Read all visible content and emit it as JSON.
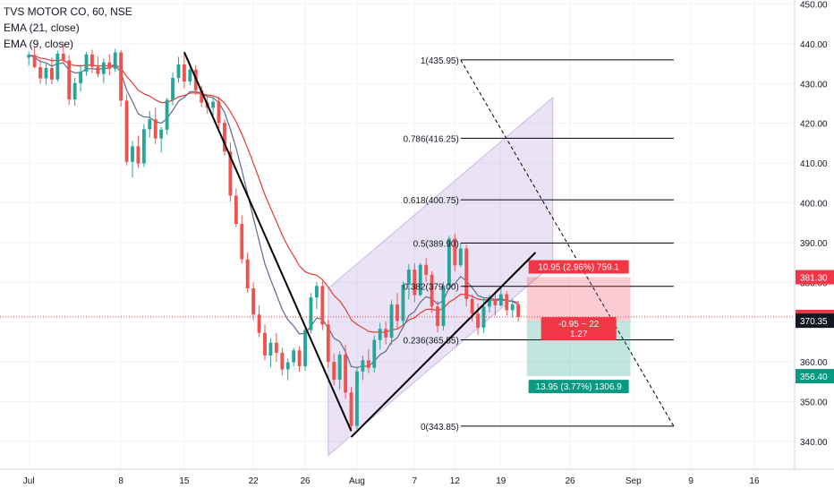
{
  "legend": {
    "symbol": "TVS MOTOR CO, 60, NSE",
    "ema21": "EMA (21, close)",
    "ema9": "EMA (9, close)"
  },
  "chart_data": {
    "type": "candlestick",
    "title": "TVS MOTOR CO, 60, NSE",
    "y_axis": {
      "ticks": [
        340,
        350,
        360,
        370,
        380,
        390,
        400,
        410,
        420,
        430,
        440,
        450
      ],
      "tick_labels": [
        "340.00",
        "350.00",
        "360.00",
        "370.00",
        "380.00",
        "390.00",
        "400.00",
        "410.00",
        "420.00",
        "430.00",
        "440.00",
        "450.00"
      ],
      "range": [
        333,
        451
      ]
    },
    "x_axis": {
      "tick_labels": [
        "Jul",
        "8",
        "15",
        "22",
        "26",
        "Aug",
        "7",
        "12",
        "19",
        "26",
        "Sep",
        "9",
        "16"
      ],
      "tick_index": [
        0,
        16,
        27,
        39,
        48,
        57,
        67,
        74,
        82,
        94,
        105,
        115,
        126
      ],
      "range_index": [
        -5,
        133
      ]
    },
    "price_badges": [
      {
        "label": "381.30",
        "value": 381.3,
        "color": "#f23645"
      },
      {
        "label": "371.30",
        "value": 371.3,
        "color": "#f23645"
      },
      {
        "label": "370.35",
        "value": 370.35,
        "color": "#131722"
      },
      {
        "label": "356.40",
        "value": 356.4,
        "color": "#089981"
      }
    ],
    "candles": [
      [
        0,
        436.5,
        438.0,
        434.5,
        437.2
      ],
      [
        1,
        437.2,
        439.0,
        433.8,
        434.1
      ],
      [
        2,
        434.1,
        436.0,
        430.0,
        431.3
      ],
      [
        3,
        431.3,
        435.2,
        429.7,
        433.9
      ],
      [
        4,
        433.9,
        436.6,
        429.8,
        431.0
      ],
      [
        5,
        431.0,
        438.3,
        430.4,
        437.5
      ],
      [
        6,
        437.5,
        440.0,
        435.1,
        435.8
      ],
      [
        7,
        435.8,
        437.1,
        424.6,
        426.0
      ],
      [
        8,
        426.0,
        431.5,
        424.4,
        430.1
      ],
      [
        9,
        430.1,
        434.8,
        428.0,
        433.0
      ],
      [
        10,
        433.0,
        437.9,
        431.9,
        437.3
      ],
      [
        11,
        437.3,
        438.5,
        432.6,
        434.2
      ],
      [
        12,
        434.2,
        436.8,
        431.6,
        432.4
      ],
      [
        13,
        432.4,
        436.3,
        430.1,
        435.3
      ],
      [
        14,
        435.3,
        437.4,
        432.1,
        433.7
      ],
      [
        15,
        433.7,
        438.7,
        432.9,
        437.8
      ],
      [
        16,
        437.8,
        438.4,
        424.2,
        425.7
      ],
      [
        17,
        425.7,
        427.3,
        409.4,
        410.3
      ],
      [
        18,
        410.3,
        415.6,
        406.4,
        414.2
      ],
      [
        19,
        414.2,
        416.9,
        408.8,
        409.9
      ],
      [
        20,
        409.9,
        419.8,
        409.0,
        418.5
      ],
      [
        21,
        418.5,
        423.1,
        416.4,
        421.0
      ],
      [
        22,
        421.0,
        424.0,
        414.8,
        416.2
      ],
      [
        23,
        416.2,
        419.1,
        412.6,
        418.4
      ],
      [
        24,
        418.4,
        426.4,
        417.2,
        425.9
      ],
      [
        25,
        425.9,
        432.8,
        424.5,
        431.4
      ],
      [
        26,
        431.4,
        436.7,
        430.2,
        434.8
      ],
      [
        27,
        434.8,
        437.9,
        428.8,
        430.5
      ],
      [
        28,
        430.5,
        434.4,
        429.6,
        433.5
      ],
      [
        29,
        433.5,
        434.6,
        427.1,
        428.3
      ],
      [
        30,
        428.3,
        429.5,
        424.1,
        425.2
      ],
      [
        31,
        425.2,
        427.3,
        422.4,
        423.9
      ],
      [
        32,
        423.9,
        426.5,
        422.0,
        425.4
      ],
      [
        33,
        425.4,
        426.7,
        418.8,
        420.1
      ],
      [
        34,
        420.1,
        421.0,
        411.9,
        412.9
      ],
      [
        35,
        412.9,
        415.2,
        400.3,
        401.8
      ],
      [
        36,
        401.8,
        403.6,
        393.9,
        394.7
      ],
      [
        37,
        394.7,
        396.8,
        384.7,
        385.8
      ],
      [
        38,
        385.8,
        387.5,
        377.4,
        378.5
      ],
      [
        39,
        378.5,
        380.0,
        370.5,
        371.9
      ],
      [
        40,
        371.9,
        374.2,
        366.2,
        367.3
      ],
      [
        41,
        367.3,
        369.4,
        360.4,
        361.6
      ],
      [
        42,
        361.6,
        366.0,
        358.6,
        364.8
      ],
      [
        43,
        364.8,
        367.3,
        360.0,
        362.3
      ],
      [
        44,
        362.3,
        363.5,
        356.6,
        358.1
      ],
      [
        45,
        358.1,
        360.8,
        355.4,
        359.9
      ],
      [
        46,
        359.9,
        363.5,
        358.9,
        362.9
      ],
      [
        47,
        362.9,
        363.9,
        357.5,
        358.9
      ],
      [
        48,
        358.9,
        368.8,
        357.7,
        368.0
      ],
      [
        49,
        368.0,
        377.3,
        367.1,
        376.2
      ],
      [
        50,
        376.2,
        380.1,
        373.3,
        379.1
      ],
      [
        51,
        379.1,
        380.3,
        368.0,
        369.4
      ],
      [
        52,
        369.4,
        370.5,
        358.5,
        360.0
      ],
      [
        53,
        360.0,
        362.0,
        354.1,
        355.5
      ],
      [
        54,
        355.5,
        362.6,
        353.0,
        361.8
      ],
      [
        55,
        361.8,
        364.2,
        350.7,
        352.3
      ],
      [
        56,
        352.3,
        353.7,
        342.6,
        343.9
      ],
      [
        57,
        343.9,
        358.8,
        343.1,
        357.6
      ],
      [
        58,
        357.6,
        361.6,
        355.4,
        360.4
      ],
      [
        59,
        360.4,
        363.2,
        357.2,
        358.5
      ],
      [
        60,
        358.5,
        366.6,
        357.3,
        365.5
      ],
      [
        61,
        365.5,
        369.8,
        363.1,
        368.3
      ],
      [
        62,
        368.3,
        370.2,
        364.4,
        366.1
      ],
      [
        63,
        366.1,
        375.5,
        364.3,
        374.4
      ],
      [
        64,
        374.4,
        377.3,
        368.2,
        370.3
      ],
      [
        65,
        370.3,
        380.2,
        369.2,
        379.4
      ],
      [
        66,
        379.4,
        384.6,
        375.7,
        383.2
      ],
      [
        67,
        383.2,
        384.8,
        375.0,
        376.8
      ],
      [
        68,
        376.8,
        384.9,
        376.4,
        384.4
      ],
      [
        69,
        384.4,
        386.1,
        380.2,
        381.9
      ],
      [
        70,
        381.9,
        382.8,
        372.3,
        373.9
      ],
      [
        71,
        373.9,
        375.4,
        367.4,
        369.0
      ],
      [
        72,
        369.0,
        380.1,
        367.9,
        379.2
      ],
      [
        73,
        379.2,
        391.7,
        378.5,
        391.0
      ],
      [
        74,
        391.0,
        392.3,
        382.8,
        384.3
      ],
      [
        75,
        384.3,
        389.9,
        383.8,
        388.5
      ],
      [
        76,
        388.5,
        389.4,
        374.0,
        375.8
      ],
      [
        77,
        375.8,
        377.0,
        370.2,
        372.1
      ],
      [
        78,
        372.1,
        374.7,
        366.8,
        368.6
      ],
      [
        79,
        368.6,
        376.1,
        367.3,
        373.9
      ],
      [
        80,
        373.9,
        376.9,
        372.4,
        375.7
      ],
      [
        81,
        375.7,
        377.2,
        371.6,
        374.2
      ],
      [
        82,
        374.2,
        378.6,
        373.9,
        377.0
      ],
      [
        83,
        377.0,
        377.8,
        371.6,
        373.0
      ],
      [
        84,
        373.0,
        375.9,
        371.2,
        374.5
      ],
      [
        85,
        374.5,
        375.4,
        370.1,
        371.3
      ]
    ],
    "fibonacci": [
      {
        "level": "1",
        "price": 435.95,
        "label": "1(435.95)"
      },
      {
        "level": "0.786",
        "price": 416.25,
        "label": "0.786(416.25)"
      },
      {
        "level": "0.618",
        "price": 400.75,
        "label": "0.618(400.75)"
      },
      {
        "level": "0.5",
        "price": 389.9,
        "label": "0.5(389.90)"
      },
      {
        "level": "0.382",
        "price": 379.0,
        "label": "0.382(379.00)"
      },
      {
        "level": "0.236",
        "price": 365.55,
        "label": "0.236(365.55)"
      },
      {
        "level": "0",
        "price": 343.85,
        "label": "0(343.85)"
      }
    ],
    "position": {
      "entry": 370.35,
      "stop": 381.3,
      "target": 356.4,
      "start_index": 86.5,
      "end_index": 104.5,
      "stop_label": "10.95 (2.96%) 759.1",
      "center_label_1": "-0.95 ~ 22",
      "center_label_2": "1.27",
      "target_label": "13.95 (3.77%) 1306.9",
      "colors": {
        "stop": "#f23645",
        "target": "#089981",
        "stop_fill": "rgba(242,54,69,0.25)",
        "target_fill": "rgba(8,153,129,0.25)"
      }
    },
    "colors": {
      "up": "#26a69a",
      "down": "#ef5350",
      "ema21": "#e53935",
      "ema9": "#5b6b8c",
      "channel_fill": "rgba(149,117,205,0.2)",
      "grid": "#f0f3fa",
      "axis_text": "#131722"
    }
  }
}
